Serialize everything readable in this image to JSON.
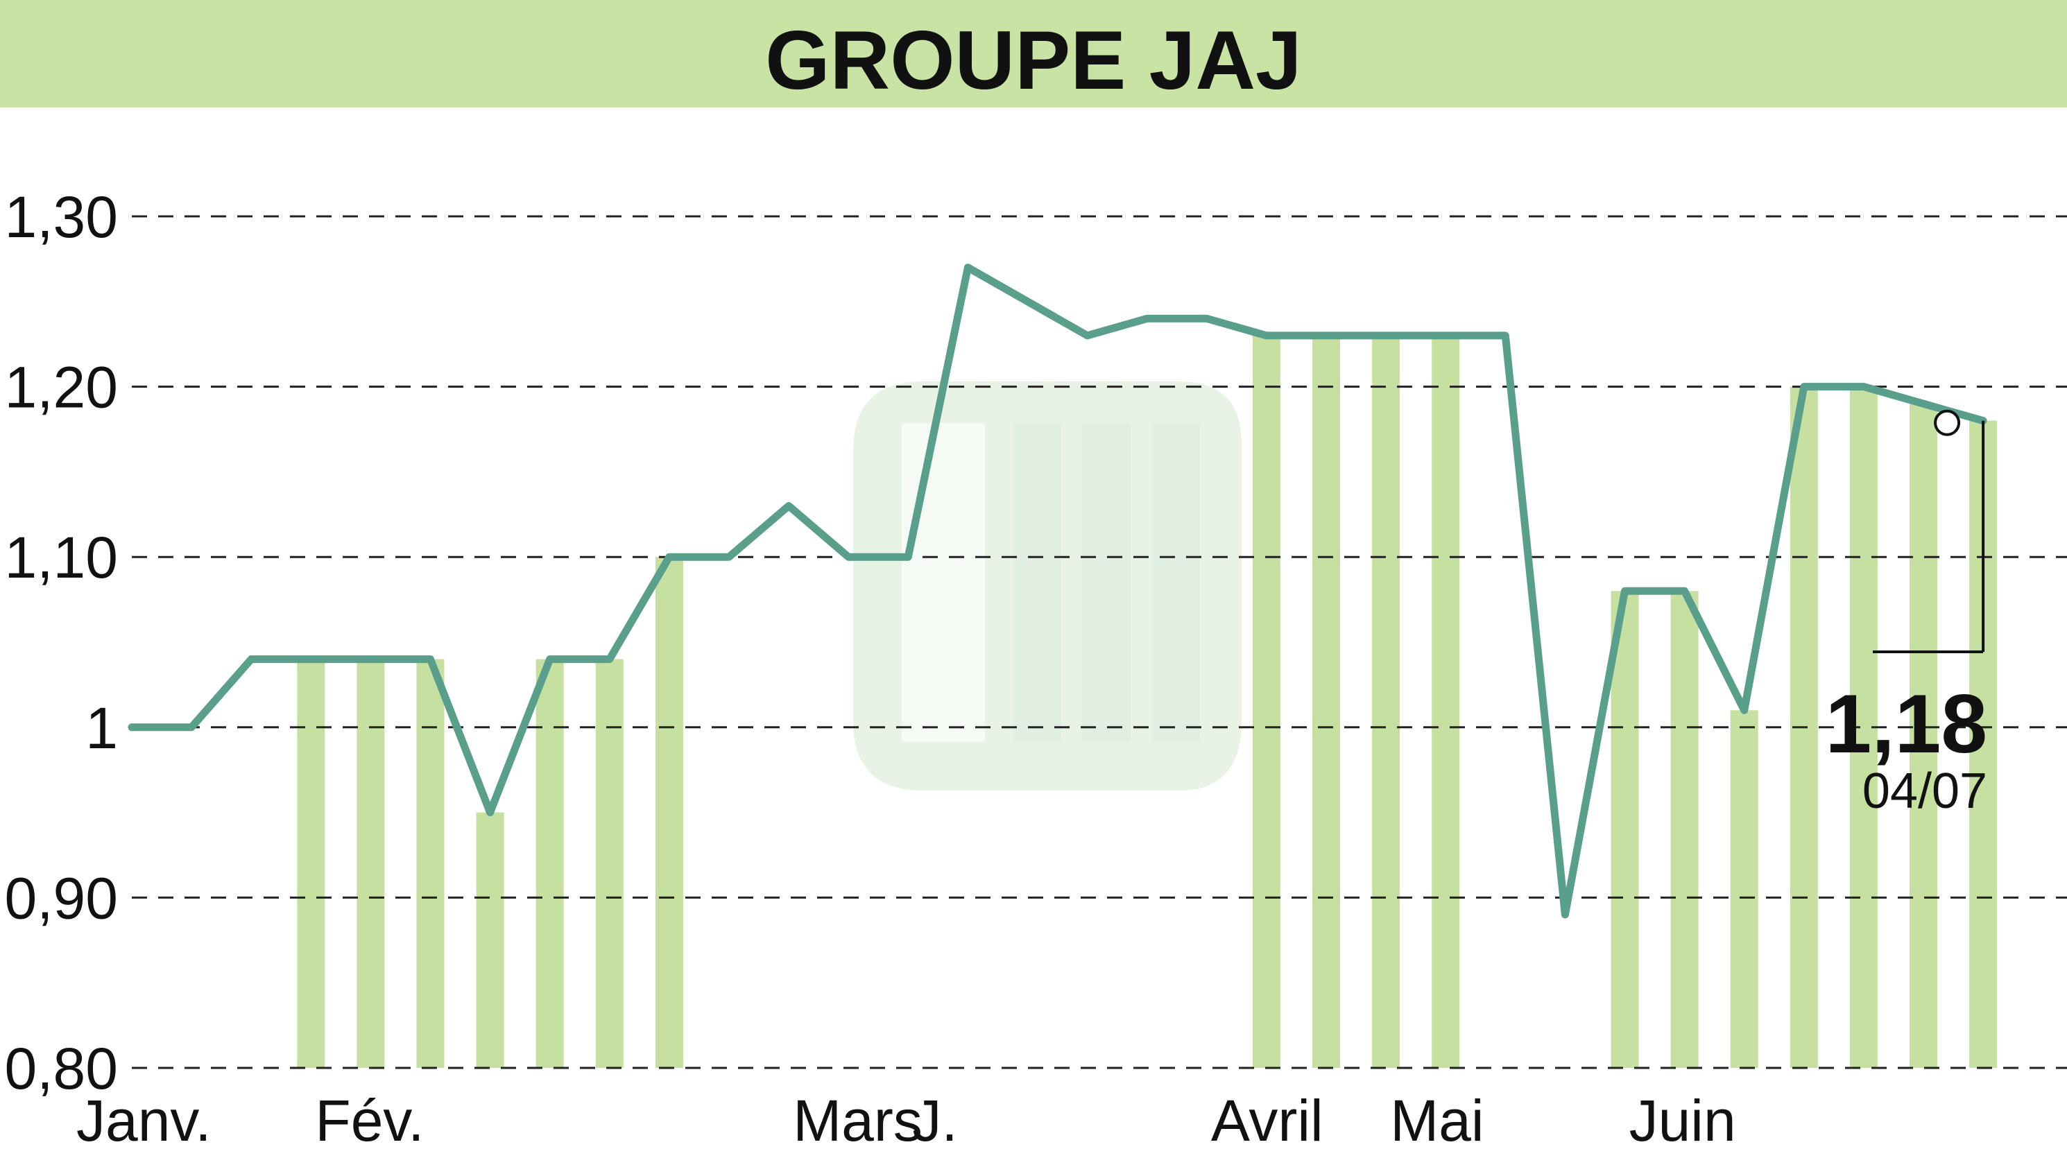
{
  "chart_data": {
    "type": "line",
    "title": "GROUPE JAJ",
    "y_ticks": [
      {
        "value": 1.3,
        "label": "1,30"
      },
      {
        "value": 1.2,
        "label": "1,20"
      },
      {
        "value": 1.1,
        "label": "1,10"
      },
      {
        "value": 1.0,
        "label": "1"
      },
      {
        "value": 0.9,
        "label": "0,90"
      },
      {
        "value": 0.8,
        "label": "0,80"
      }
    ],
    "ylim": [
      0.8,
      1.3
    ],
    "grid": "horizontal dashed",
    "months": [
      {
        "label": "Janv.",
        "index": 0
      },
      {
        "label": "Fév.",
        "index": 4
      },
      {
        "label": "Mars",
        "index": 12
      },
      {
        "label": "J.",
        "index": 14
      },
      {
        "label": "Avril",
        "index": 19
      },
      {
        "label": "Mai",
        "index": 22
      },
      {
        "label": "Juin",
        "index": 26
      }
    ],
    "series": [
      {
        "values": [
          1.0,
          1.0,
          1.04,
          1.04,
          1.04,
          1.04,
          0.95,
          1.04,
          1.04,
          1.1,
          1.1,
          1.13,
          1.1,
          1.1,
          1.27,
          1.25,
          1.23,
          1.24,
          1.24,
          1.23,
          1.23,
          1.23,
          1.23,
          1.23,
          0.89,
          1.08,
          1.08,
          1.01,
          1.2,
          1.2,
          1.19,
          1.18
        ]
      }
    ],
    "highlight_bars": [
      3,
      4,
      5,
      6,
      7,
      8,
      9,
      19,
      20,
      21,
      22,
      25,
      26,
      27,
      28,
      29,
      30,
      31
    ],
    "last_value": "1,18",
    "last_date": "04/07",
    "colors": {
      "header_band": "#c8e3a4",
      "bars": "#c5e0a0",
      "line": "#5a9e8c",
      "grid": "#222222",
      "watermark": "#d6ead2"
    }
  }
}
